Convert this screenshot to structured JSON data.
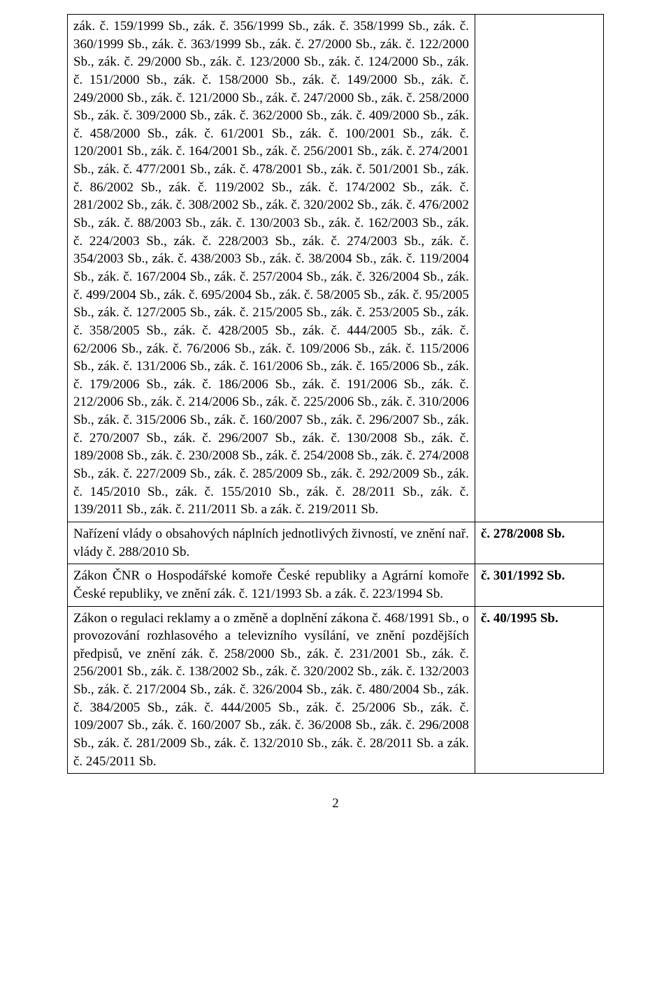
{
  "page_number": "2",
  "rows": [
    {
      "left": "zák. č. 159/1999 Sb., zák. č. 356/1999 Sb., zák. č. 358/1999 Sb., zák. č. 360/1999 Sb., zák. č. 363/1999 Sb., zák. č. 27/2000 Sb., zák. č. 122/2000 Sb., zák. č. 29/2000 Sb., zák. č. 123/2000 Sb., zák. č. 124/2000 Sb., zák. č. 151/2000 Sb., zák. č. 158/2000 Sb., zák. č. 149/2000 Sb., zák. č. 249/2000 Sb., zák. č. 121/2000 Sb., zák. č. 247/2000 Sb., zák. č. 258/2000 Sb., zák. č. 309/2000 Sb., zák. č. 362/2000 Sb., zák. č. 409/2000 Sb., zák. č. 458/2000 Sb., zák. č. 61/2001 Sb., zák. č. 100/2001 Sb., zák. č. 120/2001 Sb., zák. č. 164/2001 Sb., zák. č. 256/2001 Sb., zák. č. 274/2001 Sb., zák. č. 477/2001 Sb., zák. č. 478/2001 Sb., zák. č. 501/2001 Sb., zák. č. 86/2002 Sb., zák. č. 119/2002 Sb., zák. č. 174/2002 Sb., zák. č. 281/2002 Sb., zák. č. 308/2002 Sb., zák. č. 320/2002 Sb., zák. č. 476/2002 Sb., zák. č. 88/2003 Sb., zák. č. 130/2003 Sb., zák. č. 162/2003 Sb., zák. č. 224/2003 Sb., zák. č. 228/2003 Sb., zák. č. 274/2003 Sb., zák. č. 354/2003 Sb., zák. č. 438/2003 Sb., zák. č. 38/2004 Sb., zák. č. 119/2004 Sb., zák. č. 167/2004 Sb., zák. č. 257/2004 Sb., zák. č. 326/2004 Sb., zák. č. 499/2004 Sb., zák. č. 695/2004 Sb., zák. č. 58/2005 Sb., zák. č. 95/2005 Sb., zák. č. 127/2005 Sb., zák. č. 215/2005 Sb., zák. č. 253/2005 Sb., zák. č. 358/2005 Sb., zák. č. 428/2005 Sb., zák. č. 444/2005 Sb., zák. č. 62/2006 Sb., zák. č. 76/2006 Sb., zák. č. 109/2006 Sb., zák. č. 115/2006 Sb., zák. č. 131/2006 Sb., zák. č. 161/2006 Sb., zák. č. 165/2006 Sb., zák. č. 179/2006 Sb., zák. č. 186/2006 Sb., zák. č. 191/2006 Sb., zák. č. 212/2006 Sb., zák. č. 214/2006 Sb., zák. č. 225/2006 Sb., zák. č. 310/2006 Sb., zák. č. 315/2006 Sb., zák. č. 160/2007 Sb., zák. č. 296/2007 Sb., zák. č. 270/2007 Sb., zák. č. 296/2007 Sb., zák. č. 130/2008 Sb., zák. č. 189/2008 Sb., zák. č. 230/2008 Sb., zák. č. 254/2008 Sb., zák. č. 274/2008 Sb., zák. č. 227/2009 Sb., zák. č. 285/2009 Sb., zák. č. 292/2009 Sb., zák. č. 145/2010 Sb., zák. č. 155/2010 Sb., zák. č. 28/2011 Sb., zák. č. 139/2011 Sb., zák. č. 211/2011 Sb. a zák. č. 219/2011 Sb.",
      "right": ""
    },
    {
      "left": "Nařízení vlády o obsahových náplních jednotlivých živností, ve znění nař. vlády č. 288/2010 Sb.",
      "right": "č. 278/2008 Sb."
    },
    {
      "left": "Zákon ČNR o Hospodářské komoře České republiky a Agrární komoře České republiky, ve znění zák. č. 121/1993 Sb. a zák. č. 223/1994 Sb.",
      "right": "č. 301/1992 Sb."
    },
    {
      "left": "Zákon o regulaci reklamy a o změně a doplnění zákona č. 468/1991 Sb., o provozování rozhlasového a televizního vysílání, ve znění pozdějších předpisů, ve znění zák. č. 258/2000 Sb., zák. č. 231/2001 Sb., zák. č. 256/2001 Sb., zák. č. 138/2002 Sb., zák. č. 320/2002 Sb., zák. č. 132/2003 Sb., zák. č. 217/2004 Sb., zák. č. 326/2004 Sb., zák. č. 480/2004 Sb., zák. č. 384/2005 Sb., zák. č. 444/2005 Sb., zák. č. 25/2006 Sb., zák. č. 109/2007 Sb., zák. č. 160/2007 Sb., zák. č. 36/2008 Sb., zák. č. 296/2008 Sb., zák. č. 281/2009 Sb., zák. č. 132/2010 Sb., zák. č. 28/2011 Sb. a zák. č. 245/2011 Sb.",
      "right": "č. 40/1995 Sb."
    }
  ]
}
